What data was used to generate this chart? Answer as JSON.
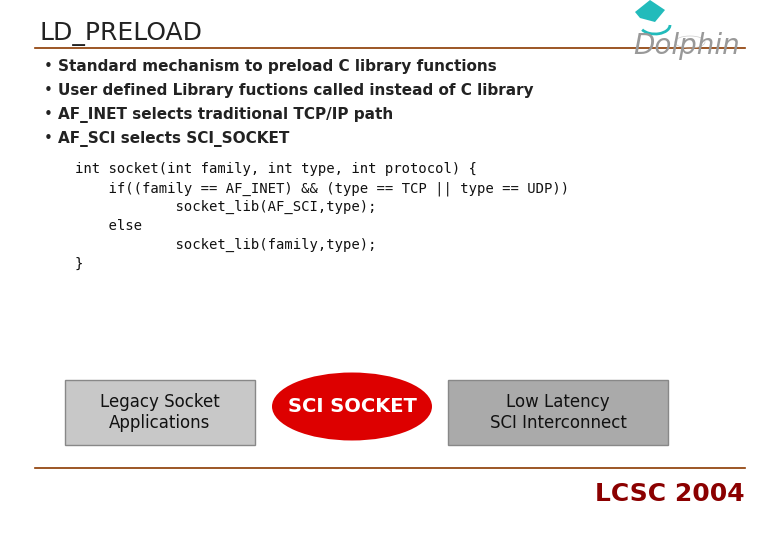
{
  "title": "LD_PRELOAD",
  "title_fontsize": 18,
  "title_color": "#222222",
  "background_color": "#ffffff",
  "bullet_points": [
    "Standard mechanism to preload C library functions",
    "User defined Library fuctions called instead of C library",
    "AF_INET selects traditional TCP/IP path",
    "AF_SCI selects SCI_SOCKET"
  ],
  "bullet_fontsize": 11,
  "code_lines": [
    "int socket(int family, int type, int protocol) {",
    "    if((family == AF_INET) && (type == TCP || type == UDP))",
    "            socket_lib(AF_SCI,type);",
    "    else",
    "            socket_lib(family,type);",
    "}"
  ],
  "code_fontsize": 10,
  "code_color": "#111111",
  "box_left_label": "Legacy Socket\nApplications",
  "box_center_label": "SCI SOCKET",
  "box_right_label": "Low Latency\nSCI Interconnect",
  "box_left_color": "#c8c8c8",
  "box_right_color": "#aaaaaa",
  "footer_text": "LCSC 2004",
  "footer_color": "#8b0000",
  "footer_fontsize": 18,
  "separator_color": "#8b3a00",
  "dolphin_text": "Dolphin",
  "dolphin_color": "#999999",
  "dolphin_fontsize": 20,
  "dolphin_fin_color": "#00aaaa"
}
